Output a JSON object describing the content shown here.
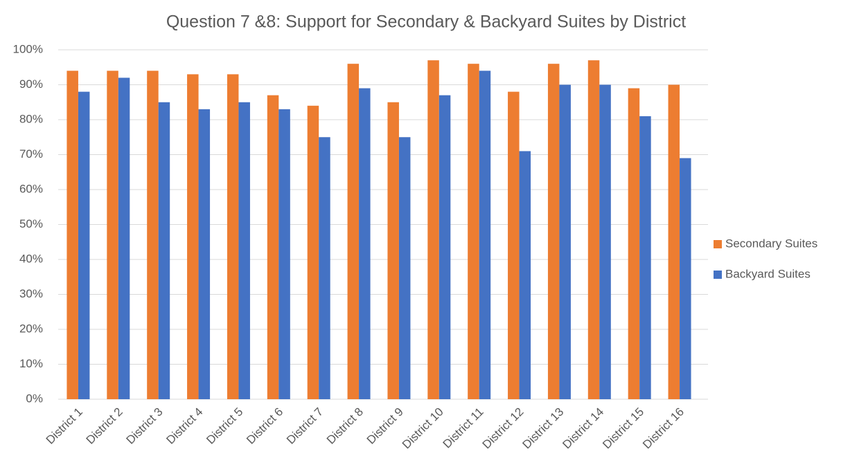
{
  "chart_data": {
    "type": "bar",
    "title": "Question 7 &8: Support for Secondary & Backyard Suites by District",
    "categories": [
      "District 1",
      "District 2",
      "District 3",
      "District 4",
      "District 5",
      "District 6",
      "District 7",
      "District 8",
      "District 9",
      "District 10",
      "District 11",
      "District 12",
      "District 13",
      "District 14",
      "District 15",
      "District 16"
    ],
    "series": [
      {
        "name": "Secondary Suites",
        "color": "#ed7d31",
        "values": [
          94,
          94,
          94,
          93,
          93,
          87,
          84,
          96,
          85,
          97,
          96,
          88,
          96,
          97,
          89,
          90
        ]
      },
      {
        "name": "Backyard Suites",
        "color": "#4472c4",
        "values": [
          88,
          92,
          85,
          83,
          85,
          83,
          75,
          89,
          75,
          87,
          94,
          71,
          90,
          90,
          81,
          69
        ]
      }
    ],
    "ylim": [
      0,
      100
    ],
    "yticks": [
      {
        "value": 0,
        "label": "0%"
      },
      {
        "value": 10,
        "label": "10%"
      },
      {
        "value": 20,
        "label": "20%"
      },
      {
        "value": 30,
        "label": "30%"
      },
      {
        "value": 40,
        "label": "40%"
      },
      {
        "value": 50,
        "label": "50%"
      },
      {
        "value": 60,
        "label": "60%"
      },
      {
        "value": 70,
        "label": "70%"
      },
      {
        "value": 80,
        "label": "80%"
      },
      {
        "value": 90,
        "label": "90%"
      },
      {
        "value": 100,
        "label": "100%"
      }
    ],
    "grid": true,
    "legend": "right"
  }
}
